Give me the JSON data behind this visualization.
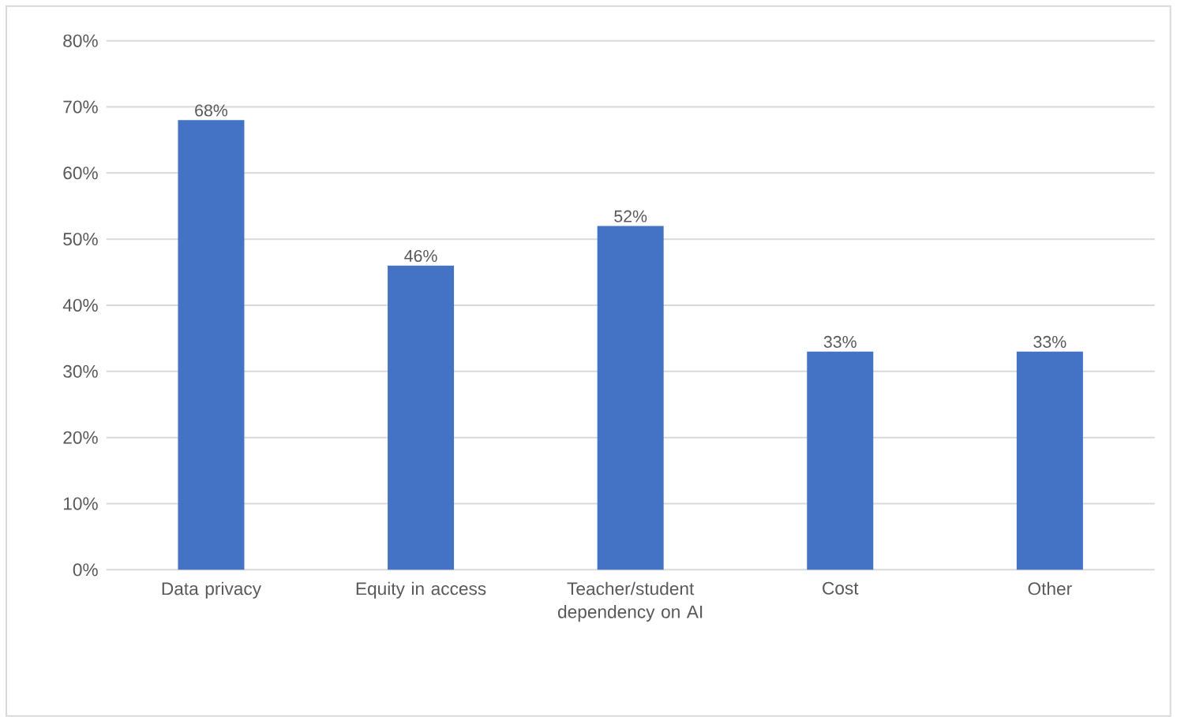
{
  "chart_data": {
    "type": "bar",
    "categories": [
      "Data privacy",
      "Equity in access",
      "Teacher/student dependency on AI",
      "Cost",
      "Other"
    ],
    "values": [
      68,
      46,
      52,
      33,
      33
    ],
    "value_labels": [
      "68%",
      "46%",
      "52%",
      "33%",
      "33%"
    ],
    "color": "#4472c4",
    "ylim": [
      0,
      80
    ],
    "yticks": [
      {
        "value": 0,
        "label": "0%"
      },
      {
        "value": 10,
        "label": "10%"
      },
      {
        "value": 20,
        "label": "20%"
      },
      {
        "value": 30,
        "label": "30%"
      },
      {
        "value": 40,
        "label": "40%"
      },
      {
        "value": 50,
        "label": "50%"
      },
      {
        "value": 60,
        "label": "60%"
      },
      {
        "value": 70,
        "label": "70%"
      },
      {
        "value": 80,
        "label": "80%"
      }
    ],
    "grid": "y"
  }
}
